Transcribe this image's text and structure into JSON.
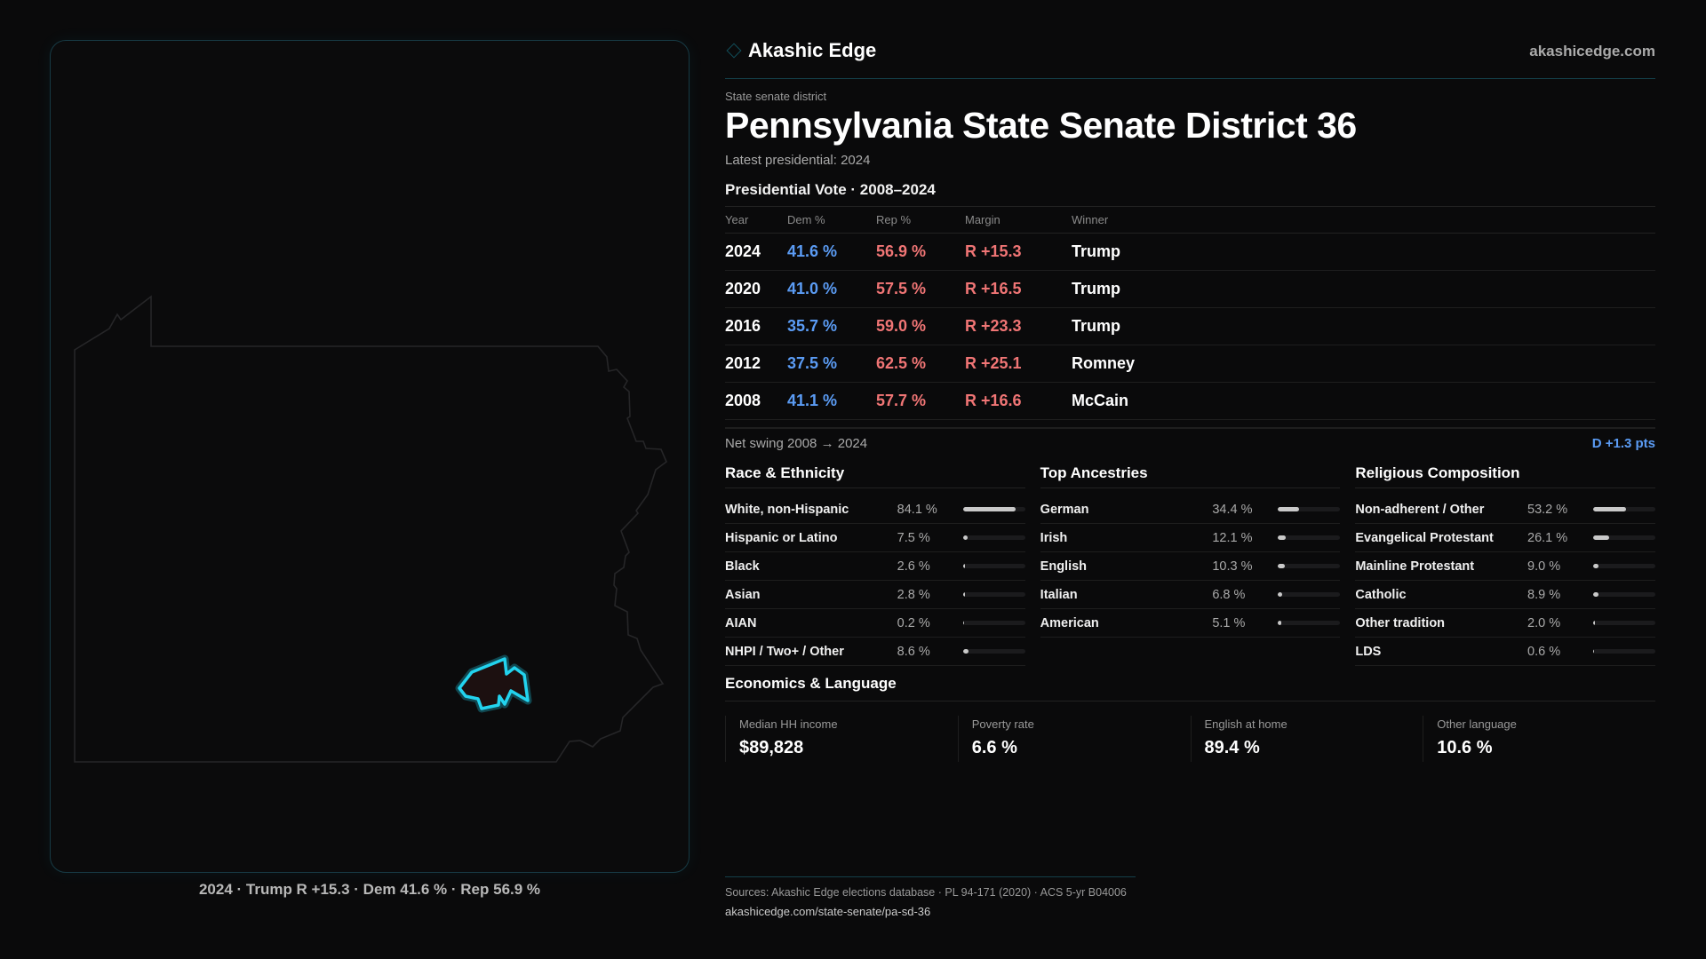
{
  "brand": {
    "name": "Akashic Edge",
    "site": "akashicedge.com",
    "icon": "diamond-icon"
  },
  "header": {
    "kicker": "State senate district",
    "title": "Pennsylvania State Senate District 36",
    "latest": "Latest presidential: 2024"
  },
  "map": {
    "caption": "2024 · Trump R +15.3 · Dem 41.6 % · Rep 56.9 %",
    "highlight_color": "#22d3ee",
    "state": "Pennsylvania"
  },
  "presidential": {
    "heading": "Presidential Vote · 2008–2024",
    "columns": [
      "Year",
      "Dem %",
      "Rep %",
      "Margin",
      "Winner"
    ],
    "rows": [
      {
        "year": "2024",
        "dem": "41.6 %",
        "rep": "56.9 %",
        "margin": "R +15.3",
        "winner": "Trump"
      },
      {
        "year": "2020",
        "dem": "41.0 %",
        "rep": "57.5 %",
        "margin": "R +16.5",
        "winner": "Trump"
      },
      {
        "year": "2016",
        "dem": "35.7 %",
        "rep": "59.0 %",
        "margin": "R +23.3",
        "winner": "Trump"
      },
      {
        "year": "2012",
        "dem": "37.5 %",
        "rep": "62.5 %",
        "margin": "R +25.1",
        "winner": "Romney"
      },
      {
        "year": "2008",
        "dem": "41.1 %",
        "rep": "57.7 %",
        "margin": "R +16.6",
        "winner": "McCain"
      }
    ],
    "swing_label": "Net swing 2008 → 2024",
    "swing_value": "D +1.3 pts"
  },
  "colors": {
    "dem": "#5b9cf5",
    "rep": "#f07575",
    "accent": "#22d3ee"
  },
  "demographics": [
    {
      "heading": "Race & Ethnicity",
      "items": [
        {
          "label": "White, non-Hispanic",
          "pct": "84.1 %",
          "value": 84.1
        },
        {
          "label": "Hispanic or Latino",
          "pct": "7.5 %",
          "value": 7.5
        },
        {
          "label": "Black",
          "pct": "2.6 %",
          "value": 2.6
        },
        {
          "label": "Asian",
          "pct": "2.8 %",
          "value": 2.8
        },
        {
          "label": "AIAN",
          "pct": "0.2 %",
          "value": 0.2
        },
        {
          "label": "NHPI / Two+ / Other",
          "pct": "8.6 %",
          "value": 8.6
        }
      ]
    },
    {
      "heading": "Top Ancestries",
      "items": [
        {
          "label": "German",
          "pct": "34.4 %",
          "value": 34.4
        },
        {
          "label": "Irish",
          "pct": "12.1 %",
          "value": 12.1
        },
        {
          "label": "English",
          "pct": "10.3 %",
          "value": 10.3
        },
        {
          "label": "Italian",
          "pct": "6.8 %",
          "value": 6.8
        },
        {
          "label": "American",
          "pct": "5.1 %",
          "value": 5.1
        }
      ]
    },
    {
      "heading": "Religious Composition",
      "items": [
        {
          "label": "Non-adherent / Other",
          "pct": "53.2 %",
          "value": 53.2
        },
        {
          "label": "Evangelical Protestant",
          "pct": "26.1 %",
          "value": 26.1
        },
        {
          "label": "Mainline Protestant",
          "pct": "9.0 %",
          "value": 9.0
        },
        {
          "label": "Catholic",
          "pct": "8.9 %",
          "value": 8.9
        },
        {
          "label": "Other tradition",
          "pct": "2.0 %",
          "value": 2.0
        },
        {
          "label": "LDS",
          "pct": "0.6 %",
          "value": 0.6
        }
      ]
    }
  ],
  "economics": {
    "heading": "Economics & Language",
    "stats": [
      {
        "label": "Median HH income",
        "value": "$89,828"
      },
      {
        "label": "Poverty rate",
        "value": "6.6 %"
      },
      {
        "label": "English at home",
        "value": "89.4 %"
      },
      {
        "label": "Other language",
        "value": "10.6 %"
      }
    ]
  },
  "footer": {
    "sources": "Sources: Akashic Edge elections database · PL 94-171 (2020) · ACS 5-yr B04006",
    "url": "akashicedge.com/state-senate/pa-sd-36"
  }
}
